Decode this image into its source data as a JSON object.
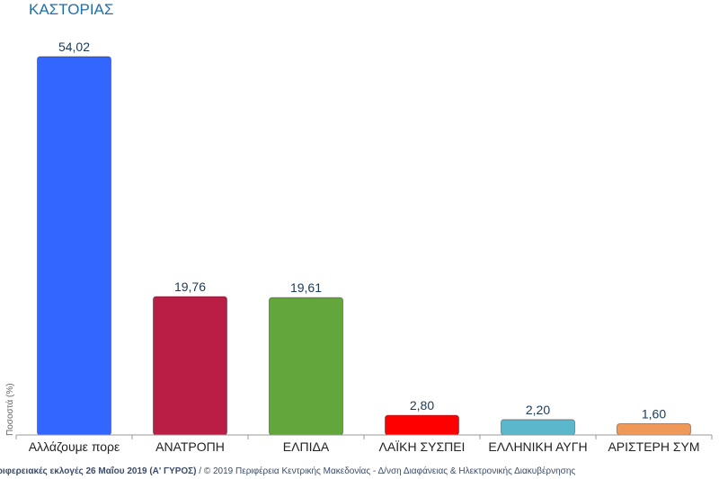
{
  "chart_data": {
    "type": "bar",
    "title": "ΚΑΣΤΟΡΙΑΣ",
    "ylabel": "Ποσοστά (%)",
    "xlabel": "",
    "categories": [
      "Αλλάζουμε πορε",
      "ΑΝΑΤΡΟΠΗ",
      "ΕΛΠΙΔΑ",
      "ΛΑΪΚΗ ΣΥΣΠΕΙ",
      "ΕΛΛΗΝΙΚΗ ΑΥΓΗ",
      "ΑΡΙΣΤΕΡΗ ΣΥΜ"
    ],
    "values": [
      54.02,
      19.76,
      19.61,
      2.8,
      2.2,
      1.6
    ],
    "value_labels": [
      "54,02",
      "19,76",
      "19,61",
      "2,80",
      "2,20",
      "1,60"
    ],
    "colors": [
      "#3366ff",
      "#bb1e45",
      "#63a63c",
      "#ff0000",
      "#5bb8cc",
      "#f09858"
    ],
    "ylim": [
      0,
      55
    ],
    "grid": false,
    "legend": "none"
  },
  "footer": {
    "source": "εριφερειακές εκλογές 26 Μαΐου 2019 (Α' ΓΥΡΟΣ)",
    "copyright": " / © 2019 Περιφέρεια Κεντρικής Μακεδονίας - Δ/νση Διαφάνειας & Ηλεκτρονικής Διακυβέρνησης"
  }
}
